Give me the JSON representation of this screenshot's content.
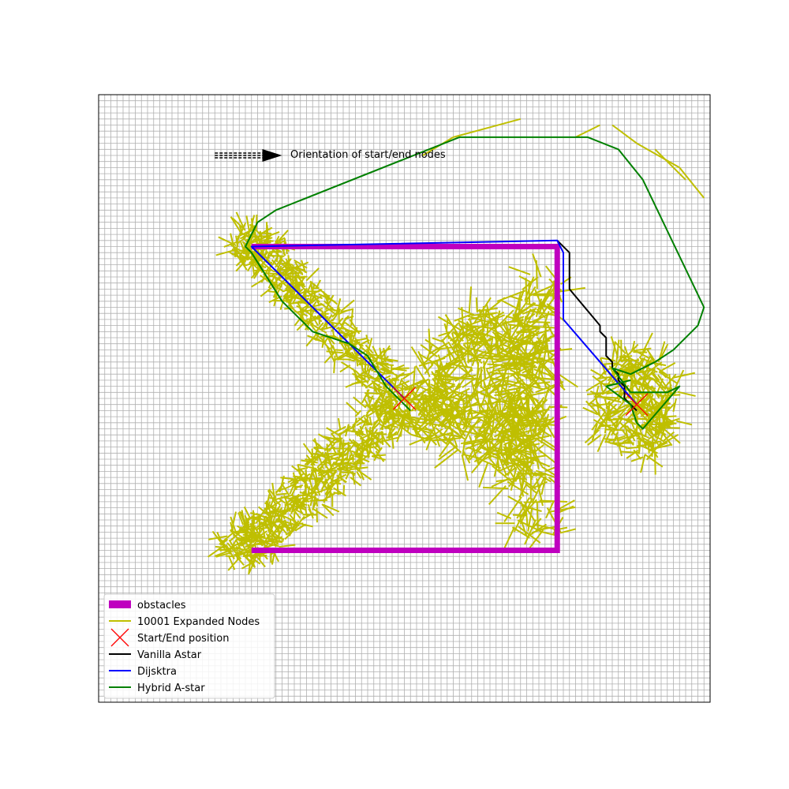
{
  "chart_data": {
    "type": "line",
    "title": "",
    "xlabel": "",
    "ylabel": "",
    "xlim": [
      0,
      100
    ],
    "ylim": [
      0,
      100
    ],
    "grid": true,
    "annotation": {
      "text": "Orientation of start/end nodes",
      "arrow_from": [
        19,
        90
      ],
      "arrow_to": [
        30,
        90
      ]
    },
    "colors": {
      "obstacles": "#bf00bf",
      "expanded": "#bfbf00",
      "startend": "#ff0000",
      "vanilla": "#000000",
      "dijkstra": "#0000ff",
      "hybrid": "#008000",
      "grid": "#b0b0b0"
    },
    "legend": {
      "placement": "lower-left",
      "entries": [
        {
          "key": "obstacles",
          "label": "obstacles"
        },
        {
          "key": "expanded",
          "label": "10001 Expanded Nodes"
        },
        {
          "key": "startend",
          "label": "Start/End position"
        },
        {
          "key": "vanilla",
          "label": "Vanilla Astar"
        },
        {
          "key": "dijkstra",
          "label": "Dijsktra"
        },
        {
          "key": "hybrid",
          "label": "Hybrid A-star"
        }
      ]
    },
    "obstacles": [
      [
        25,
        75
      ],
      [
        75,
        75
      ],
      [
        75,
        25
      ],
      [
        25,
        25
      ]
    ],
    "start": [
      50,
      50
    ],
    "end": [
      88,
      49
    ],
    "series": [
      {
        "name": "Vanilla Astar",
        "key": "vanilla",
        "points": [
          [
            75,
            76
          ],
          [
            77,
            74
          ],
          [
            77,
            68
          ],
          [
            82,
            62
          ],
          [
            82,
            61
          ],
          [
            83,
            60
          ],
          [
            83,
            57
          ],
          [
            84,
            56
          ],
          [
            84,
            55
          ],
          [
            85,
            54
          ],
          [
            85,
            53
          ],
          [
            86,
            52
          ],
          [
            86,
            50
          ],
          [
            88,
            48
          ]
        ]
      },
      {
        "name": "Dijsktra",
        "key": "dijkstra",
        "points": [
          [
            50,
            50
          ],
          [
            25,
            75
          ],
          [
            75,
            76
          ],
          [
            76,
            74
          ],
          [
            76,
            63
          ],
          [
            88,
            49
          ]
        ]
      },
      {
        "name": "Hybrid A-star",
        "key": "hybrid",
        "points": [
          [
            51,
            48
          ],
          [
            47,
            52
          ],
          [
            44,
            57
          ],
          [
            41,
            59
          ],
          [
            35,
            61
          ],
          [
            30,
            66
          ],
          [
            25,
            74
          ],
          [
            24,
            75
          ],
          [
            26,
            79
          ],
          [
            29,
            81
          ],
          [
            59,
            93
          ],
          [
            80,
            93
          ],
          [
            85,
            91
          ],
          [
            89,
            86
          ],
          [
            99,
            65
          ],
          [
            98,
            62
          ],
          [
            94,
            58
          ],
          [
            91,
            56
          ],
          [
            87,
            54
          ],
          [
            84,
            55
          ],
          [
            87,
            51
          ],
          [
            93,
            51
          ],
          [
            95,
            52
          ],
          [
            89,
            45
          ],
          [
            88,
            46
          ],
          [
            87,
            49
          ],
          [
            83,
            52
          ],
          [
            87,
            53
          ]
        ]
      }
    ]
  }
}
